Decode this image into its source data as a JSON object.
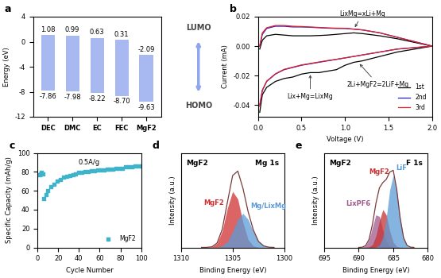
{
  "chart_data": [
    {
      "type": "range_bar",
      "panel_label": "a",
      "categories": [
        "DEC",
        "DMC",
        "EC",
        "FEC",
        "MgF2"
      ],
      "series": [
        {
          "name": "LUMO",
          "values": [
            1.08,
            0.99,
            0.63,
            0.31,
            -2.09
          ],
          "value_labels": [
            "1.08",
            "0.99",
            "0.63",
            "0.31",
            "-2.09"
          ]
        },
        {
          "name": "HOMO",
          "values": [
            -7.86,
            -7.98,
            -8.22,
            -8.7,
            -9.63
          ],
          "value_labels": [
            "-7.86",
            "-7.98",
            "-8.22",
            "-8.70",
            "-9.63"
          ]
        }
      ],
      "color": "#a8b8f0",
      "ylim": [
        -12,
        4
      ],
      "yticks": [
        -12,
        -8,
        -4,
        0,
        4
      ],
      "y_label": "Energy (eV)",
      "data_labels": true
    },
    {
      "type": "line",
      "panel_label": "b",
      "x": [
        0.02,
        0.05,
        0.1,
        0.2,
        0.3,
        0.4,
        0.5,
        0.6,
        0.7,
        0.8,
        0.9,
        1.0,
        1.1,
        1.2,
        1.4,
        1.6,
        1.8,
        2.0,
        1.8,
        1.6,
        1.4,
        1.2,
        1.1,
        1.0,
        0.9,
        0.8,
        0.7,
        0.6,
        0.5,
        0.4,
        0.3,
        0.2,
        0.1,
        0.05,
        0.02
      ],
      "series": [
        {
          "name": "1st",
          "color": "#000000",
          "values": [
            -0.002,
            0.004,
            0.007,
            0.008,
            0.0075,
            0.007,
            0.007,
            0.007,
            0.0072,
            0.0075,
            0.008,
            0.0085,
            0.009,
            0.0085,
            0.007,
            0.005,
            0.0025,
            0.0,
            -0.002,
            -0.004,
            -0.007,
            -0.01,
            -0.011,
            -0.013,
            -0.016,
            -0.017,
            -0.018,
            -0.018,
            -0.019,
            -0.021,
            -0.022,
            -0.024,
            -0.028,
            -0.033,
            -0.045
          ]
        },
        {
          "name": "2nd",
          "color": "#2020e0",
          "values": [
            0.0,
            0.008,
            0.012,
            0.0135,
            0.0135,
            0.013,
            0.013,
            0.0128,
            0.0125,
            0.0122,
            0.012,
            0.012,
            0.0115,
            0.011,
            0.009,
            0.006,
            0.003,
            0.0,
            -0.001,
            -0.002,
            -0.004,
            -0.006,
            -0.007,
            -0.008,
            -0.009,
            -0.01,
            -0.011,
            -0.012,
            -0.013,
            -0.0145,
            -0.016,
            -0.019,
            -0.024,
            -0.03,
            -0.04
          ]
        },
        {
          "name": "3rd",
          "color": "#e02020",
          "values": [
            0.0,
            0.009,
            0.0125,
            0.014,
            0.014,
            0.0135,
            0.0133,
            0.013,
            0.0127,
            0.0124,
            0.0122,
            0.0121,
            0.0116,
            0.011,
            0.009,
            0.006,
            0.003,
            0.0,
            -0.001,
            -0.002,
            -0.004,
            -0.006,
            -0.007,
            -0.008,
            -0.009,
            -0.0098,
            -0.0108,
            -0.0118,
            -0.0128,
            -0.0143,
            -0.0158,
            -0.0188,
            -0.0238,
            -0.03,
            -0.041
          ]
        }
      ],
      "xlim": [
        0,
        2.0
      ],
      "xticks": [
        {
          "value": 0,
          "label": "0.0"
        },
        0.5,
        {
          "value": 1,
          "label": "1.0"
        },
        1.5,
        {
          "value": 2,
          "label": "2.0"
        }
      ],
      "ylim": [
        -0.048,
        0.02
      ],
      "yticks": [
        -0.04,
        -0.02,
        {
          "value": 0,
          "label": "0.00"
        },
        0.02
      ],
      "x_label": "Voltage (V)",
      "y_label": "Current (mA)",
      "legend": "lower right",
      "annotations": [
        {
          "text": "LixMg=xLi+Mg",
          "x": 1.1,
          "y": 0.0115
        },
        {
          "text": "2Li+MgF2=2LiF+Mg",
          "x": 1.15,
          "y": -0.011
        },
        {
          "text": "Lix+Mg=LixMg",
          "x": 0.6,
          "y": -0.018
        }
      ]
    },
    {
      "type": "scatter",
      "panel_label": "c",
      "x": [
        2,
        3,
        4,
        5,
        6,
        8,
        10,
        13,
        16,
        19,
        22,
        25,
        28,
        31,
        34,
        37,
        40,
        43,
        46,
        49,
        52,
        55,
        58,
        61,
        64,
        67,
        70,
        73,
        76,
        79,
        82,
        85,
        88,
        91,
        94,
        97,
        100
      ],
      "series": [
        {
          "name": "MgF2",
          "color": "#3fb3c9",
          "marker": "square",
          "values": [
            77,
            78,
            79,
            78,
            52,
            56,
            60,
            64,
            67,
            70,
            72,
            74,
            75,
            76,
            77,
            78,
            79,
            79,
            80,
            80,
            81,
            81,
            82,
            82,
            82,
            83,
            83,
            83,
            84,
            84,
            84,
            85,
            85,
            85,
            86,
            86,
            86
          ]
        }
      ],
      "xlim": [
        0,
        100
      ],
      "xticks": [
        0,
        20,
        40,
        60,
        80,
        100
      ],
      "ylim": [
        0,
        100
      ],
      "yticks": [
        0,
        20,
        40,
        60,
        80,
        100
      ],
      "x_label": "Cycle Number",
      "y_label": "Specific Capacity (mAh/g)",
      "legend": "lower right",
      "annotations": [
        {
          "text": "0.5A/g"
        }
      ]
    },
    {
      "type": "area",
      "panel_label": "d",
      "title": "Mg 1s",
      "sample_label": "MgF2",
      "x": [
        1308,
        1307.5,
        1307,
        1306.5,
        1306,
        1305.5,
        1305,
        1304.5,
        1304,
        1303.5,
        1303,
        1302.5,
        1302,
        1301.5,
        1301
      ],
      "series": [
        {
          "name": "MgF2",
          "color": "#d03030",
          "type": "area",
          "values": [
            0,
            0.001,
            0.008,
            0.055,
            0.22,
            0.52,
            0.74,
            0.64,
            0.33,
            0.1,
            0.019,
            0.002,
            0,
            0,
            0
          ]
        },
        {
          "name": "Mg/LixMg",
          "color": "#5b9bd5",
          "type": "area",
          "values": [
            0,
            0,
            0,
            0.003,
            0.02,
            0.077,
            0.21,
            0.37,
            0.45,
            0.37,
            0.21,
            0.077,
            0.02,
            0.003,
            0
          ]
        },
        {
          "color": "#7a3b3b",
          "type": "line",
          "values": [
            0,
            0.001,
            0.008,
            0.058,
            0.24,
            0.6,
            0.95,
            1.01,
            0.78,
            0.47,
            0.23,
            0.079,
            0.02,
            0.003,
            0
          ]
        }
      ],
      "xlim": [
        1310,
        1300
      ],
      "xticks": [
        1310,
        1305,
        1300
      ],
      "ylim": [
        0,
        1.25
      ],
      "tick_labels": "x",
      "x_label": "Binding Energy (eV)",
      "y_label": "Intensity (a.u.)"
    },
    {
      "type": "area",
      "panel_label": "e",
      "title": "F 1s",
      "sample_label": "MgF2",
      "x": [
        690,
        689.5,
        689,
        688.5,
        688,
        687.5,
        687,
        686.5,
        686,
        685.5,
        685,
        684.5,
        684,
        683.5,
        683,
        682.5,
        682
      ],
      "series": [
        {
          "name": "LixPF6",
          "color": "#a05a8c",
          "type": "area",
          "values": [
            0,
            0.003,
            0.023,
            0.1,
            0.27,
            0.43,
            0.41,
            0.23,
            0.081,
            0.017,
            0.002,
            0,
            0,
            0,
            0,
            0,
            0
          ]
        },
        {
          "name": "MgF2",
          "color": "#c83232",
          "type": "area",
          "values": [
            0,
            0,
            0.001,
            0.006,
            0.037,
            0.15,
            0.35,
            0.5,
            0.43,
            0.22,
            0.068,
            0.013,
            0.002,
            0,
            0,
            0,
            0
          ]
        },
        {
          "name": "LiF",
          "color": "#5b9bd5",
          "type": "area",
          "values": [
            0,
            0,
            0,
            0,
            0,
            0.004,
            0.027,
            0.128,
            0.39,
            0.76,
            0.95,
            0.76,
            0.39,
            0.128,
            0.027,
            0.004,
            0
          ]
        },
        {
          "color": "#7a3b3b",
          "type": "line",
          "values": [
            0,
            0.003,
            0.024,
            0.106,
            0.307,
            0.584,
            0.787,
            0.858,
            0.901,
            0.997,
            1.02,
            0.773,
            0.392,
            0.128,
            0.027,
            0.004,
            0
          ]
        }
      ],
      "xlim": [
        695,
        680
      ],
      "xticks": [
        695,
        690,
        685,
        680
      ],
      "ylim": [
        0,
        1.25
      ],
      "tick_labels": "x",
      "x_label": "Binding Energy (eV)",
      "y_label": "Intensity (a.u.)"
    }
  ]
}
